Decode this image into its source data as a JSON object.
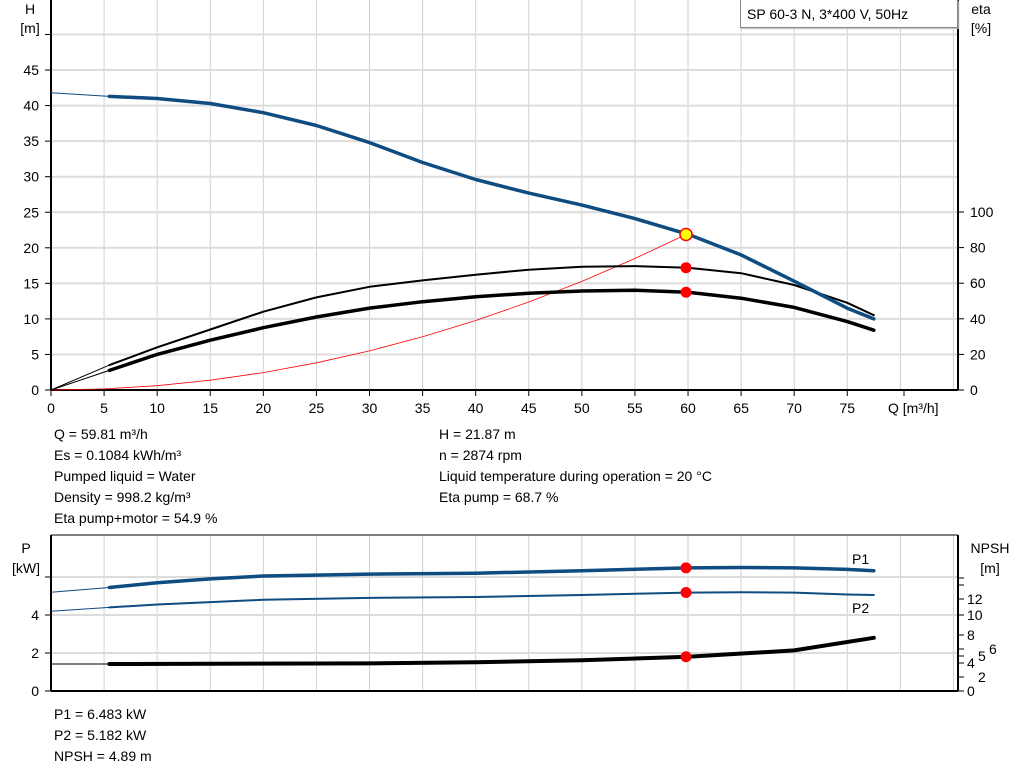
{
  "title": "SP 60-3 N, 3*400 V, 50Hz",
  "chart_data": [
    {
      "type": "line",
      "title": "SP 60-3 N, 3*400 V, 50Hz",
      "xlabel": "Q [m³/h]",
      "ylabel_left": "H\n[m]",
      "ylabel_left_parts": [
        "H",
        "[m]"
      ],
      "ylabel_right_parts": [
        "eta",
        "[%]"
      ],
      "xlim": [
        0,
        80
      ],
      "ylim_left": [
        0,
        50
      ],
      "ylim_right": [
        0,
        100
      ],
      "x_ticks": [
        "0",
        "5",
        "10",
        "15",
        "20",
        "25",
        "30",
        "35",
        "40",
        "45",
        "50",
        "55",
        "60",
        "65",
        "70",
        "75"
      ],
      "y_left_ticks": [
        "0",
        "5",
        "10",
        "15",
        "20",
        "25",
        "30",
        "35",
        "40",
        "45"
      ],
      "y_right_ticks": [
        "0",
        "20",
        "40",
        "60",
        "80",
        "100"
      ],
      "grid": true,
      "series": [
        {
          "axis": "left",
          "color": "#0f4c81",
          "x": [
            0,
            5.5,
            10,
            15,
            20,
            25,
            30,
            35,
            40,
            45,
            50,
            55,
            60,
            65,
            70,
            75,
            77.5
          ],
          "y": [
            41.8,
            41.3,
            41.0,
            40.3,
            39.0,
            37.2,
            34.8,
            32.0,
            29.6,
            27.7,
            26.0,
            24.1,
            21.9,
            19.0,
            15.3,
            11.5,
            10.0
          ]
        },
        {
          "axis": "right",
          "color": "#000000",
          "x": [
            0,
            5.5,
            10,
            15,
            20,
            25,
            30,
            35,
            40,
            45,
            50,
            55,
            60,
            65,
            70,
            75,
            77.5
          ],
          "y": [
            0,
            14,
            24,
            34,
            44,
            52,
            58,
            61.6,
            64.8,
            67.6,
            69.2,
            69.6,
            68.7,
            65.6,
            59,
            49,
            42
          ]
        },
        {
          "axis": "right",
          "color": "#000000",
          "x": [
            0,
            5.5,
            10,
            15,
            20,
            25,
            30,
            35,
            40,
            45,
            50,
            55,
            60,
            65,
            70,
            75,
            77.5
          ],
          "y": [
            0,
            11,
            20,
            28,
            35,
            41,
            46,
            49.6,
            52.4,
            54.4,
            55.6,
            56,
            54.9,
            51.6,
            46.4,
            38.4,
            33.6
          ]
        },
        {
          "axis": "left",
          "color": "#ff0000",
          "x": [
            0,
            5,
            10,
            15,
            20,
            25,
            30,
            35,
            40,
            45,
            50,
            55,
            59.81
          ],
          "y": [
            0,
            0.15,
            0.61,
            1.38,
            2.45,
            3.82,
            5.5,
            7.49,
            9.78,
            12.38,
            15.28,
            18.49,
            21.87
          ]
        }
      ],
      "duty_point": {
        "Q": 59.81,
        "H": 21.87,
        "eta_pump": 68.7,
        "eta_pump_motor": 54.9
      }
    },
    {
      "type": "line",
      "ylabel_left_parts": [
        "P",
        "[kW]"
      ],
      "ylabel_right_parts": [
        "NPSH",
        "[m]"
      ],
      "xlim": [
        0,
        80
      ],
      "ylim_left": [
        0,
        8
      ],
      "y_left_ticks": [
        "0",
        "2",
        "4"
      ],
      "y_right_ticks": [
        "0",
        "2",
        "4",
        "5",
        "6",
        "8",
        "10",
        "12"
      ],
      "grid": true,
      "series": [
        {
          "name": "P1",
          "axis": "left",
          "color": "#0f4c81",
          "x": [
            0,
            5.5,
            10,
            15,
            20,
            25,
            30,
            40,
            50,
            60,
            65,
            70,
            75,
            77.5
          ],
          "y": [
            5.2,
            5.45,
            5.7,
            5.9,
            6.05,
            6.1,
            6.15,
            6.2,
            6.33,
            6.48,
            6.5,
            6.48,
            6.4,
            6.33
          ]
        },
        {
          "name": "P2",
          "axis": "left",
          "color": "#0f4c81",
          "x": [
            0,
            5.5,
            10,
            20,
            30,
            40,
            50,
            60,
            65,
            70,
            75,
            77.5
          ],
          "y": [
            4.2,
            4.4,
            4.55,
            4.8,
            4.9,
            4.95,
            5.05,
            5.18,
            5.2,
            5.18,
            5.08,
            5.05
          ]
        },
        {
          "axis": "right",
          "color": "#000000",
          "x": [
            0,
            5.5,
            30,
            40,
            50,
            60,
            70,
            77.5
          ],
          "y": [
            3.85,
            3.85,
            3.95,
            4.1,
            4.4,
            4.89,
            5.8,
            7.6
          ]
        }
      ],
      "duty_point": {
        "Q": 59.81,
        "P1": 6.483,
        "P2": 5.182,
        "NPSH": 4.89
      }
    }
  ],
  "info_top_left": [
    "Q = 59.81 m³/h",
    "Es = 0.1084 kWh/m³",
    "Pumped liquid = Water",
    "Density = 998.2 kg/m³",
    "Eta pump+motor = 54.9 %"
  ],
  "info_top_right": [
    "H = 21.87 m",
    "n = 2874 rpm",
    "Liquid temperature during operation = 20 °C",
    "Eta pump = 68.7 %"
  ],
  "info_bottom": [
    "P1 = 6.483 kW",
    "P2 = 5.182 kW",
    "NPSH = 4.89 m"
  ],
  "colors": {
    "head": "#0f4c81",
    "power": "#0f4c81",
    "efficiency": "#000000",
    "system": "#ff0000",
    "marker": "#ff0000",
    "duty_marker": "#ffff00",
    "grid": "#d0d0d0"
  }
}
